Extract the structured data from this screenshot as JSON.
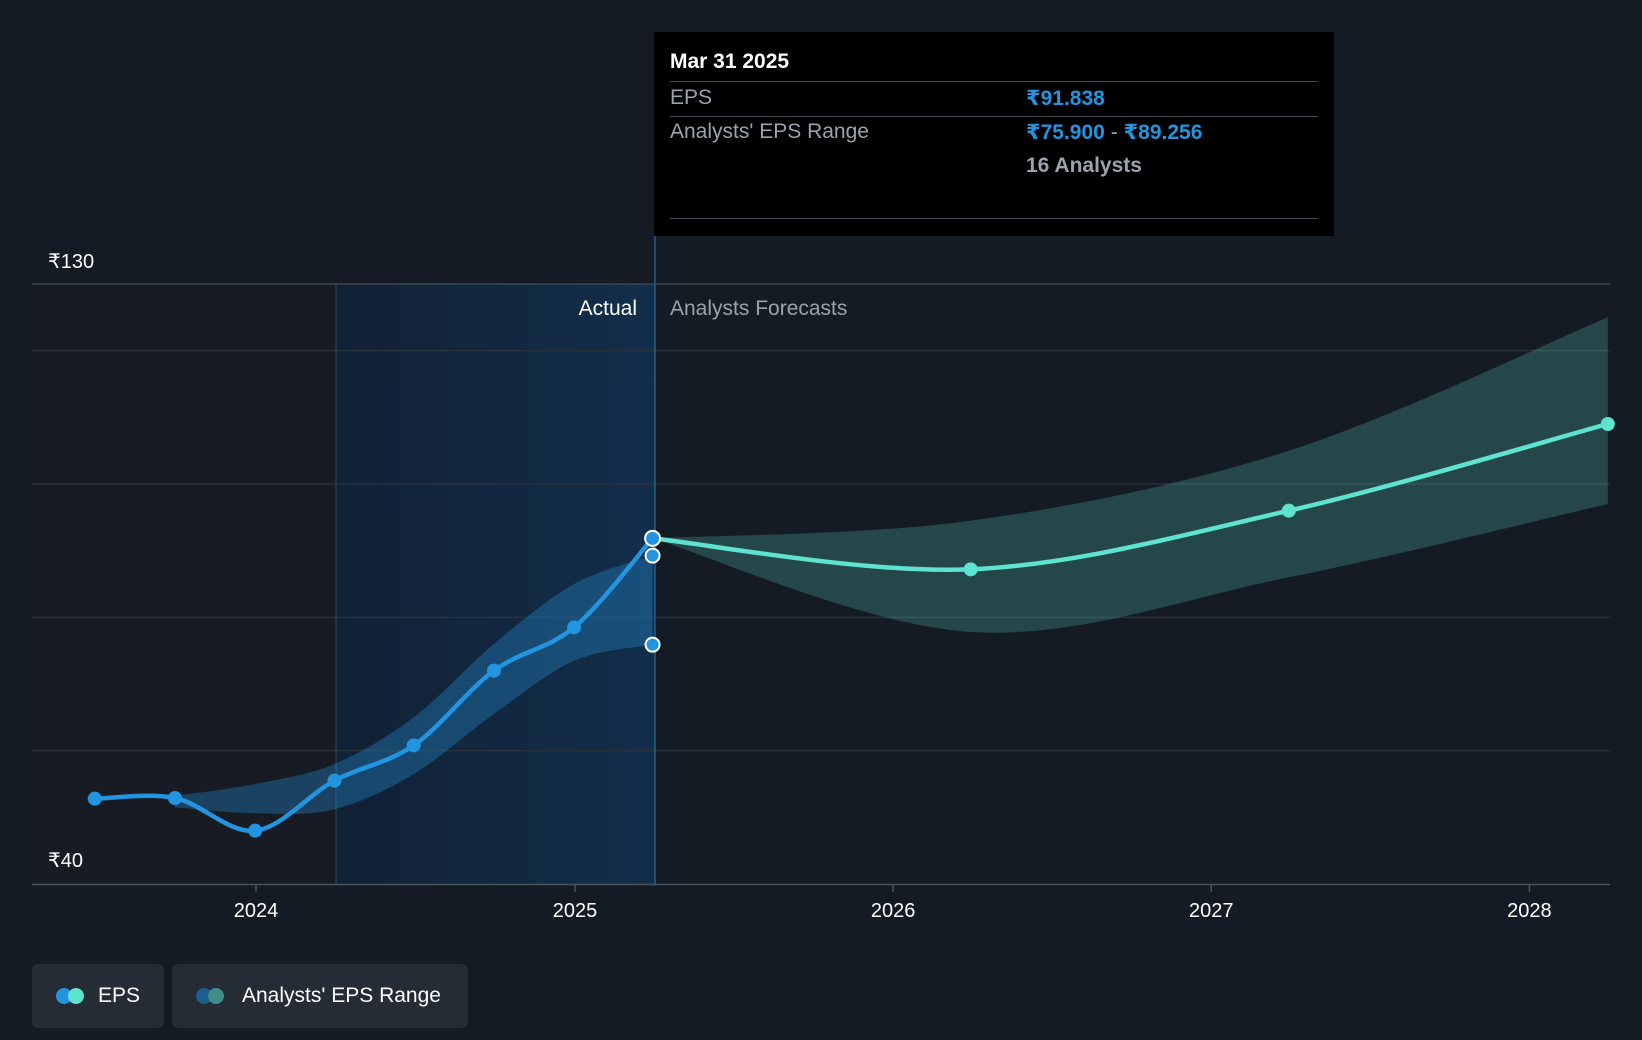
{
  "chart_data": {
    "type": "line",
    "y_axis": {
      "top_label": "₹130",
      "bottom_label": "₹40",
      "ylim": [
        40,
        130
      ]
    },
    "x_ticks": [
      "2024",
      "2025",
      "2026",
      "2027",
      "2028"
    ],
    "region_labels": {
      "actual": "Actual",
      "forecast": "Analysts Forecasts"
    },
    "series": [
      {
        "name": "EPS",
        "color": "#2394df",
        "points": [
          {
            "x": "2023-06-30",
            "y": 52.8
          },
          {
            "x": "2023-09-30",
            "y": 52.9
          },
          {
            "x": "2023-12-31",
            "y": 48.0
          },
          {
            "x": "2024-03-31",
            "y": 55.5
          },
          {
            "x": "2024-06-30",
            "y": 60.8
          },
          {
            "x": "2024-09-30",
            "y": 72.0
          },
          {
            "x": "2024-12-31",
            "y": 78.5
          },
          {
            "x": "2025-03-31",
            "y": 91.838
          }
        ]
      },
      {
        "name": "EPS Forecast",
        "color": "#5ee3cf",
        "points": [
          {
            "x": "2025-03-31",
            "y": 91.838
          },
          {
            "x": "2026-03-31",
            "y": 87.2
          },
          {
            "x": "2027-03-31",
            "y": 96.0
          },
          {
            "x": "2028-03-31",
            "y": 109.0
          }
        ]
      }
    ],
    "ranges": [
      {
        "name": "Analysts' EPS Range",
        "color": "#2394df",
        "points": [
          {
            "x": "2023-09-30",
            "low": 51.5,
            "high": 53.2
          },
          {
            "x": "2023-12-31",
            "low": 50.6,
            "high": 55.0
          },
          {
            "x": "2024-03-31",
            "low": 51.2,
            "high": 58.0
          },
          {
            "x": "2024-06-30",
            "low": 56.5,
            "high": 65.0
          },
          {
            "x": "2024-09-30",
            "low": 65.5,
            "high": 76.0
          },
          {
            "x": "2024-12-31",
            "low": 73.5,
            "high": 85.0
          },
          {
            "x": "2025-03-31",
            "low": 75.9,
            "high": 89.256
          }
        ]
      },
      {
        "name": "Analysts' EPS Range (forecast)",
        "color": "#5ee3cf",
        "points": [
          {
            "x": "2025-03-31",
            "low": 91.838,
            "high": 91.838
          },
          {
            "x": "2026-03-31",
            "low": 77.8,
            "high": 94.5
          },
          {
            "x": "2027-03-31",
            "low": 86.0,
            "high": 105.0
          },
          {
            "x": "2028-03-31",
            "low": 97.0,
            "high": 125.0
          }
        ]
      }
    ],
    "gridlines": true
  },
  "tooltip": {
    "date": "Mar 31 2025",
    "eps_label": "EPS",
    "eps_value": "₹91.838",
    "range_label": "Analysts' EPS Range",
    "range_low": "₹75.900",
    "range_sep": "-",
    "range_high": "₹89.256",
    "analysts_count": "16 Analysts"
  },
  "legend": {
    "eps_label": "EPS",
    "range_label": "Analysts' EPS Range"
  },
  "colors": {
    "background": "#151b24",
    "eps_actual": "#2394df",
    "eps_forecast": "#5ee3cf",
    "actual_shade": "#0f2a43"
  }
}
